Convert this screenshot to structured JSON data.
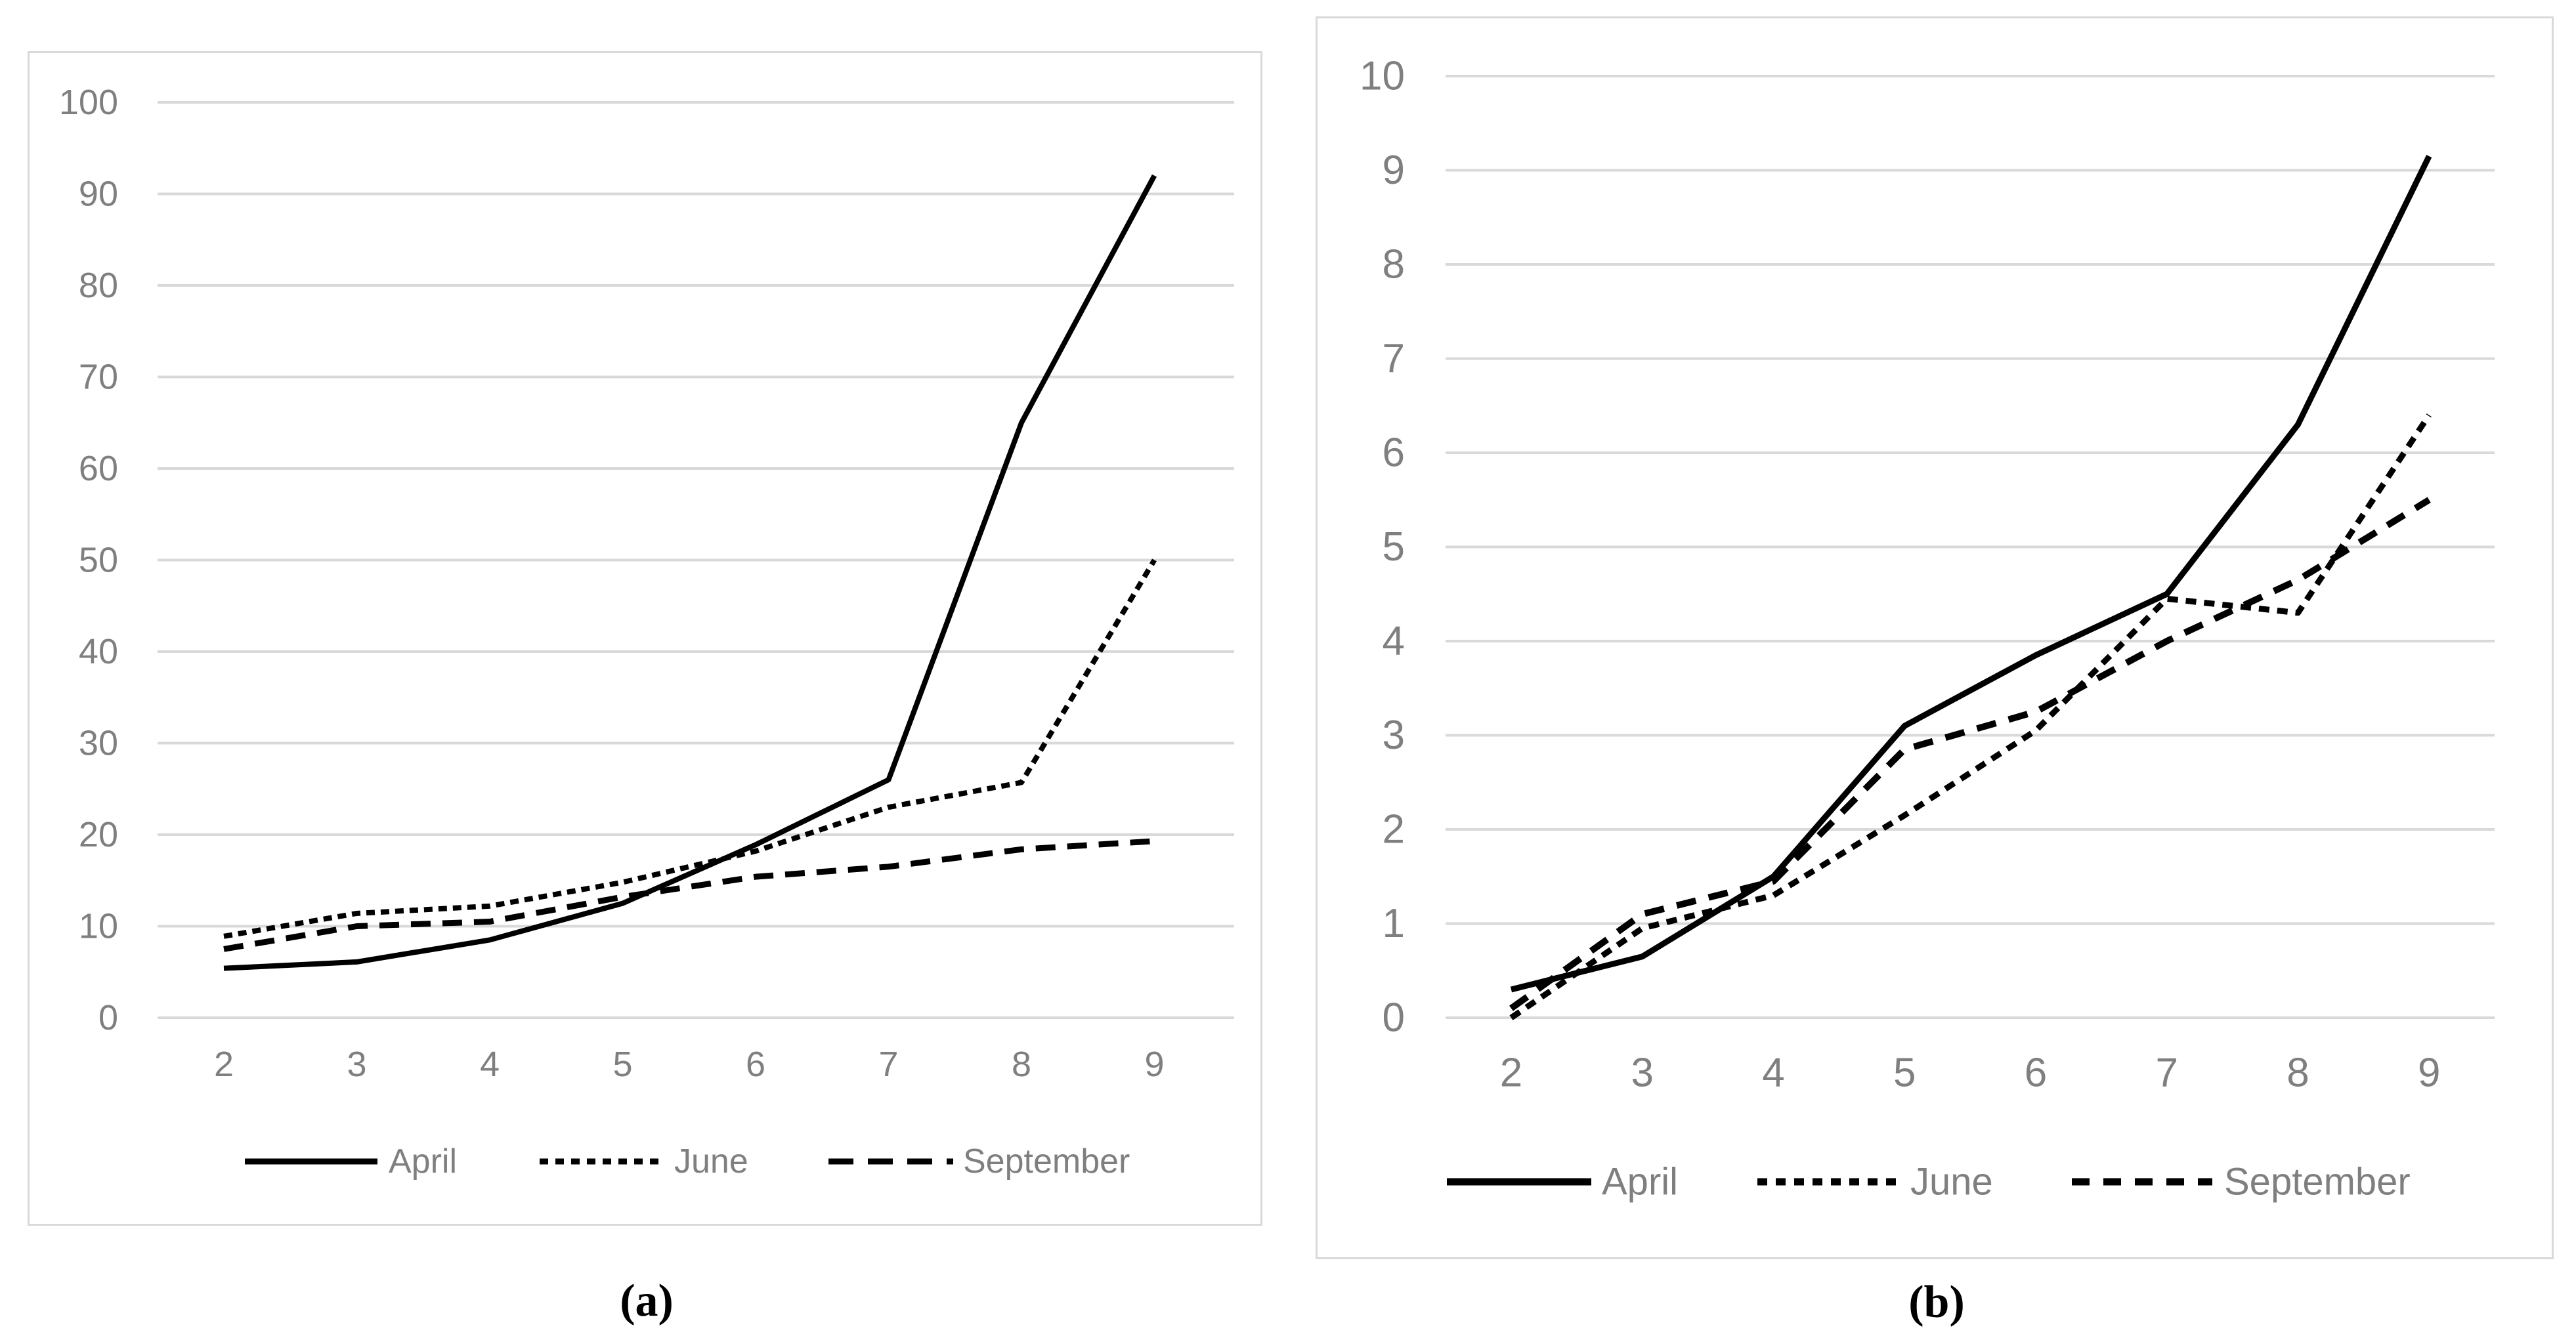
{
  "captions": {
    "a": "(a)",
    "b": "(b)"
  },
  "colors": {
    "background": "#ffffff",
    "panel_border": "#d9d9d9",
    "gridline": "#d9d9d9",
    "axis_label": "#7f7f7f",
    "legend_label": "#7f7f7f",
    "series_line": "#000000",
    "caption": "#000000"
  },
  "chart_data": [
    {
      "id": "a",
      "type": "line",
      "title": "",
      "xlabel": "",
      "ylabel": "",
      "grid": "horizontal-only",
      "legend_position": "bottom",
      "categories": [
        2,
        3,
        4,
        5,
        6,
        7,
        8,
        9
      ],
      "yticks": [
        0,
        10,
        20,
        30,
        40,
        50,
        60,
        70,
        80,
        90,
        100
      ],
      "ylim": [
        0,
        100
      ],
      "series": [
        {
          "name": "April",
          "style": "solid",
          "values": [
            5.4,
            6.1,
            8.5,
            12.5,
            18.9,
            26,
            65,
            92
          ]
        },
        {
          "name": "June",
          "style": "dense-dash",
          "values": [
            8.9,
            11.4,
            12.2,
            14.8,
            18.2,
            23,
            25.7,
            50
          ]
        },
        {
          "name": "September",
          "style": "long-dash",
          "values": [
            7.5,
            10,
            10.5,
            13.2,
            15.4,
            16.5,
            18.4,
            19.3
          ]
        }
      ]
    },
    {
      "id": "b",
      "type": "line",
      "title": "",
      "xlabel": "",
      "ylabel": "",
      "grid": "horizontal-only",
      "legend_position": "bottom",
      "categories": [
        2,
        3,
        4,
        5,
        6,
        7,
        8,
        9
      ],
      "yticks": [
        0,
        1,
        2,
        3,
        4,
        5,
        6,
        7,
        8,
        9,
        10
      ],
      "ylim": [
        0,
        10
      ],
      "series": [
        {
          "name": "April",
          "style": "solid",
          "values": [
            0.3,
            0.65,
            1.5,
            3.1,
            3.85,
            4.5,
            6.3,
            9.15
          ]
        },
        {
          "name": "June",
          "style": "dense-dash",
          "values": [
            0,
            0.95,
            1.3,
            2.15,
            3.05,
            4.45,
            4.3,
            6.4
          ]
        },
        {
          "name": "September",
          "style": "long-dash",
          "values": [
            0.1,
            1.1,
            1.45,
            2.85,
            3.25,
            4.0,
            4.65,
            5.5
          ]
        }
      ]
    }
  ]
}
